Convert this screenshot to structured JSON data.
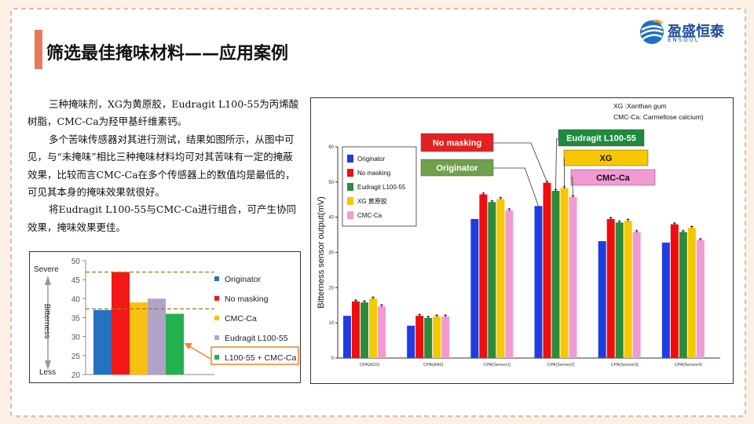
{
  "title": "筛选最佳掩味材料——应用案例",
  "logo": {
    "name": "盈盛恒泰",
    "sub": "ENSOUL"
  },
  "paragraphs": [
    "三种掩味剂，XG为黄原胶，Eudragit L100-55为丙烯酸树脂，CMC-Ca为羟甲基纤维素钙。",
    "多个苦味传感器对其进行测试，结果如图所示，从图中可见，与“未掩味”相比三种掩味材料均可对其苦味有一定的掩蔽效果，比较而言CMC-Ca在多个传感器上的数值均是最低的，可见其本身的掩味效果就很好。",
    "将Eudragit L100-55与CMC-Ca进行组合，可产生协同效果，掩味效果更佳。"
  ],
  "colors": {
    "blue": "#1f3de0",
    "red": "#f00d0d",
    "green": "#2e8b3a",
    "yellow": "#f7c800",
    "pink": "#f29ad4",
    "s_blue": "#2472c0",
    "s_red": "#f21818",
    "s_yellow": "#f9c012",
    "s_purple": "#b1a3c8",
    "s_green": "#22b14c"
  },
  "chart_data": [
    {
      "type": "bar",
      "ylabel": "Bitterness",
      "ylim": [
        20,
        50
      ],
      "yticks": [
        "20",
        "25",
        "30",
        "35",
        "40",
        "45",
        "50"
      ],
      "scale_top": "Severe",
      "scale_bottom": "Less",
      "series": [
        {
          "name": "Originator",
          "values": [
            37
          ]
        },
        {
          "name": "No masking",
          "values": [
            47
          ]
        },
        {
          "name": "CMC-Ca",
          "values": [
            39
          ]
        },
        {
          "name": "Eudragit L100-55",
          "values": [
            40
          ]
        },
        {
          "name": "L100-55 + CMC-Ca",
          "values": [
            36
          ]
        }
      ],
      "reference_lines": [
        47,
        37.3
      ]
    },
    {
      "type": "bar",
      "ylabel": "Bitterness sensor output(mV)",
      "ylim": [
        0,
        60
      ],
      "yticks": [
        "0",
        "10",
        "20",
        "30",
        "40",
        "50",
        "60"
      ],
      "categories": [
        "CPA(AC0)",
        "CPA(AN0)",
        "CPA(Sensor1)",
        "CPA(Sensor2)",
        "CPA(Sensor3)",
        "CPA(Sensor4)"
      ],
      "series": [
        {
          "name": "Originator",
          "values": [
            12,
            9.2,
            39.5,
            43.2,
            33.2,
            32.8
          ]
        },
        {
          "name": "No masking",
          "values": [
            16.1,
            12,
            46.5,
            49.8,
            39.5,
            38
          ]
        },
        {
          "name": "Eudragit L100-55",
          "values": [
            15.8,
            11.4,
            44.3,
            47.5,
            38.5,
            35.8
          ]
        },
        {
          "name": "XG 黄原胶",
          "values": [
            16.9,
            11.8,
            45.2,
            48.3,
            39,
            37
          ]
        },
        {
          "name": "CMC-Ca",
          "values": [
            14.7,
            11.8,
            42,
            45.8,
            35.8,
            33.5
          ]
        }
      ],
      "labels": [
        "No masking",
        "Eudragit L100-55",
        "Originator",
        "XG",
        "CMC-Ca"
      ],
      "notes": [
        "XG :Xanthan gum",
        "CMC-Ca: Carmellose calcium)"
      ]
    }
  ]
}
